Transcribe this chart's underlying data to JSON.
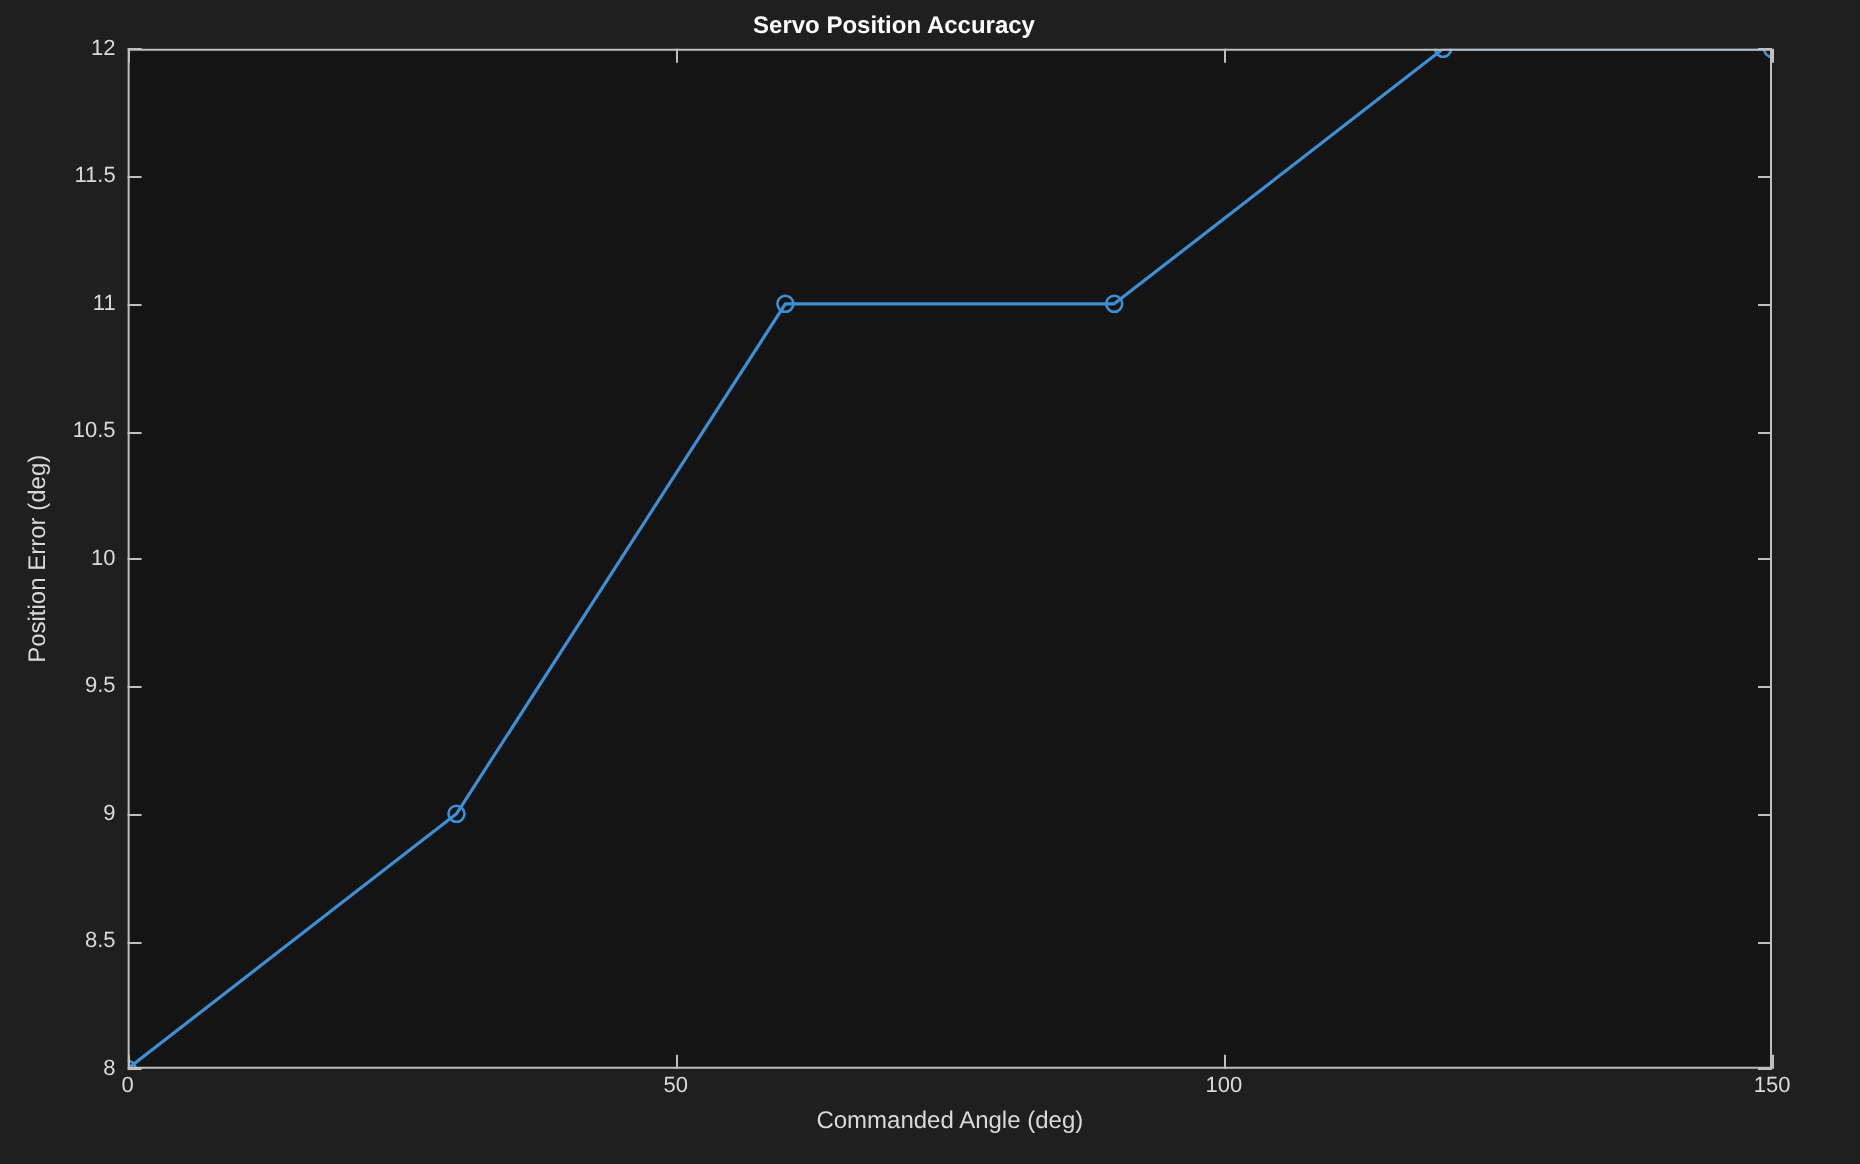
{
  "chart_data": {
    "type": "line",
    "title": "Servo Position Accuracy",
    "xlabel": "Commanded Angle (deg)",
    "ylabel": "Position Error (deg)",
    "x": [
      0,
      30,
      60,
      90,
      120,
      150
    ],
    "series": [
      {
        "color": "#3d8fd6",
        "values": [
          8,
          9,
          11,
          11,
          12,
          12
        ]
      }
    ],
    "xlim": [
      0,
      150
    ],
    "xticks": [
      0,
      50,
      100,
      150
    ],
    "ylim": [
      8,
      12
    ],
    "yticks": [
      8,
      8.5,
      9,
      9.5,
      10,
      10.5,
      11,
      11.5,
      12
    ],
    "marker": "circle",
    "line_style": "solid",
    "grid": false,
    "legend": false
  }
}
